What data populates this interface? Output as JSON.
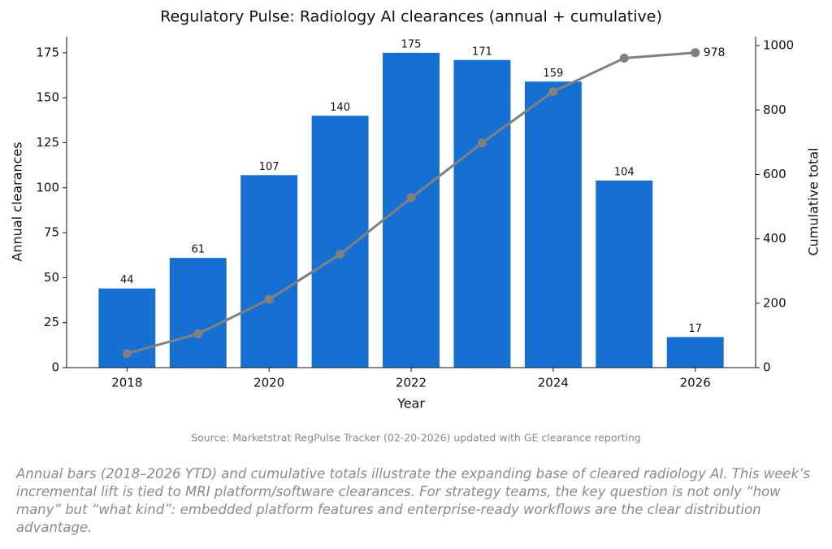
{
  "chart_data": {
    "type": "bar+line",
    "title": "Regulatory Pulse: Radiology AI clearances (annual + cumulative)",
    "xlabel": "Year",
    "ylabel": "Annual clearances",
    "y2label": "Cumulative total",
    "x": [
      2018,
      2019,
      2020,
      2021,
      2022,
      2023,
      2024,
      2025,
      2026
    ],
    "xlim": [
      2017.15,
      2026.85
    ],
    "xticks": [
      2018,
      2020,
      2022,
      2024,
      2026
    ],
    "ylim": [
      0,
      184
    ],
    "yticks": [
      0,
      25,
      50,
      75,
      100,
      125,
      150,
      175
    ],
    "y2lim": [
      0,
      1028
    ],
    "y2ticks": [
      0,
      200,
      400,
      600,
      800,
      1000
    ],
    "series": [
      {
        "type": "bar",
        "color": "#1570d1",
        "values": [
          44,
          61,
          107,
          140,
          175,
          171,
          159,
          104,
          17
        ],
        "labels": "all"
      },
      {
        "type": "line",
        "axis": "y2",
        "color": "#808080",
        "values": [
          44,
          105,
          212,
          352,
          527,
          698,
          857,
          961,
          978
        ],
        "labels": "last"
      }
    ],
    "source": "Source: Marketstrat RegPulse Tracker (02-20-2026) updated with GE clearance reporting",
    "caption": "Annual bars (2018–2026 YTD) and cumulative totals illustrate the expanding base of cleared radiology AI. This week’s incremental lift is tied to MRI platform/software clearances. For strategy teams, the key question is not only “how many” but “what kind”: embedded platform features and enterprise-ready workflows are the clear distribution advantage."
  }
}
